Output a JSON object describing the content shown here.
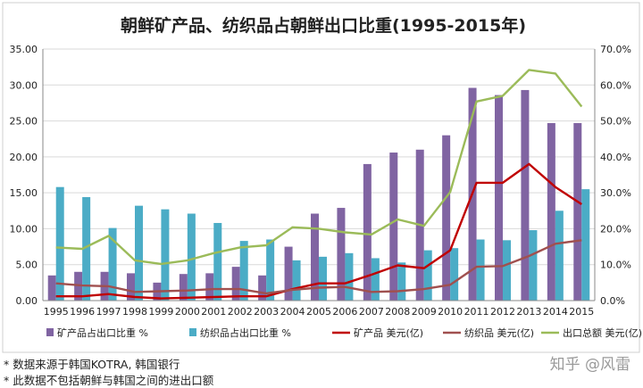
{
  "chart_data": {
    "type": "bar",
    "title": "朝鲜矿产品、纺织品占朝鲜出口比重(1995-2015年)",
    "categories": [
      "1995",
      "1996",
      "1997",
      "1998",
      "1999",
      "2000",
      "2001",
      "2002",
      "2003",
      "2004",
      "2005",
      "2006",
      "2007",
      "2008",
      "2009",
      "2010",
      "2011",
      "2012",
      "2013",
      "2014",
      "2015"
    ],
    "y_left": {
      "range": [
        0,
        35
      ],
      "ticks": [
        "0.00",
        "5.00",
        "10.00",
        "15.00",
        "20.00",
        "25.00",
        "30.00",
        "35.00"
      ]
    },
    "y_right": {
      "range": [
        0,
        70
      ],
      "ticks": [
        "0.0%",
        "10.0%",
        "20.0%",
        "30.0%",
        "40.0%",
        "50.0%",
        "60.0%",
        "70.0%"
      ]
    },
    "grid": true,
    "legend_position": "bottom",
    "series": [
      {
        "name": "矿产品占出口比重 %",
        "kind": "bar",
        "axis": "right",
        "color": "#8064a2",
        "values": [
          7.0,
          8.0,
          8.0,
          7.6,
          5.0,
          7.4,
          7.6,
          9.4,
          7.0,
          15.0,
          24.2,
          25.8,
          38.0,
          41.2,
          42.0,
          46.0,
          59.2,
          57.2,
          58.6,
          49.4,
          49.4
        ]
      },
      {
        "name": "纺织品占出口比重 %",
        "kind": "bar",
        "axis": "right",
        "color": "#4bacc6",
        "values": [
          31.6,
          28.8,
          20.2,
          26.4,
          25.4,
          24.2,
          21.6,
          16.6,
          17.0,
          11.2,
          12.2,
          13.2,
          11.8,
          10.6,
          14.0,
          14.6,
          17.0,
          16.8,
          19.6,
          25.0,
          31.0
        ]
      },
      {
        "name": "矿产品 美元(亿)",
        "kind": "line",
        "axis": "left",
        "color": "#c00000",
        "values": [
          0.6,
          0.6,
          0.9,
          0.5,
          0.3,
          0.4,
          0.5,
          0.6,
          0.6,
          1.6,
          2.4,
          2.4,
          3.6,
          4.9,
          4.5,
          7.0,
          16.4,
          16.4,
          19.0,
          15.8,
          13.4
        ]
      },
      {
        "name": "纺织品 美元(亿)",
        "kind": "line",
        "axis": "left",
        "color": "#a0504f",
        "values": [
          2.4,
          2.1,
          2.0,
          1.2,
          1.3,
          1.4,
          1.6,
          1.6,
          1.0,
          1.5,
          1.8,
          1.9,
          1.2,
          1.3,
          1.6,
          2.2,
          4.7,
          4.8,
          6.2,
          7.9,
          8.4
        ]
      },
      {
        "name": "出口总额 美元(亿)",
        "kind": "line",
        "axis": "left",
        "color": "#9bbb59",
        "values": [
          7.4,
          7.2,
          9.0,
          5.6,
          5.1,
          5.6,
          6.6,
          7.4,
          7.7,
          10.2,
          10.0,
          9.5,
          9.2,
          11.3,
          10.4,
          15.1,
          27.7,
          28.5,
          32.1,
          31.6,
          27.0
        ]
      }
    ]
  },
  "footnotes": {
    "line1": "* 数据来源于韩国KOTRA, 韩国银行",
    "line2": "* 此数据不包括朝鲜与韩国之间的进出口额"
  },
  "watermark": "知乎 @风雷"
}
